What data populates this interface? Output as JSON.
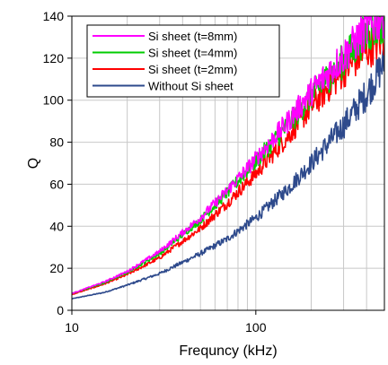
{
  "chart_data": {
    "type": "line",
    "title": "",
    "xlabel": "Frequncy (kHz)",
    "ylabel": "Q",
    "x_scale": "log",
    "xlim": [
      10,
      500
    ],
    "ylim": [
      0,
      140
    ],
    "x_ticks": [
      10,
      100
    ],
    "y_ticks": [
      0,
      20,
      40,
      60,
      80,
      100,
      120,
      140
    ],
    "grid": true,
    "legend_position": "top-left",
    "series": [
      {
        "name": "Si sheet (t=8mm)",
        "color": "#ff00ff",
        "x": [
          10,
          15,
          20,
          30,
          50,
          70,
          100,
          150,
          200,
          300,
          400,
          500
        ],
        "y": [
          8,
          13.5,
          18.5,
          28,
          44,
          57,
          72,
          90,
          104,
          121,
          134,
          141
        ]
      },
      {
        "name": "Si sheet (t=4mm)",
        "color": "#00cc00",
        "x": [
          10,
          15,
          20,
          30,
          50,
          70,
          100,
          150,
          200,
          300,
          400,
          500
        ],
        "y": [
          8,
          13,
          18,
          27,
          43,
          56,
          71,
          88,
          102,
          119,
          132,
          138
        ]
      },
      {
        "name": "Si sheet (t=2mm)",
        "color": "#ff0000",
        "x": [
          10,
          15,
          20,
          30,
          50,
          70,
          100,
          150,
          200,
          300,
          400,
          500
        ],
        "y": [
          7.5,
          12.5,
          17,
          25,
          39,
          51,
          65,
          83,
          97,
          114,
          124,
          130
        ]
      },
      {
        "name": "Without Si sheet",
        "color": "#2e4a8c",
        "x": [
          10,
          15,
          20,
          30,
          50,
          70,
          100,
          150,
          200,
          300,
          400,
          500
        ],
        "y": [
          5.5,
          8.5,
          12,
          17.5,
          27,
          34,
          44,
          58,
          70,
          88,
          103,
          118
        ]
      }
    ]
  }
}
